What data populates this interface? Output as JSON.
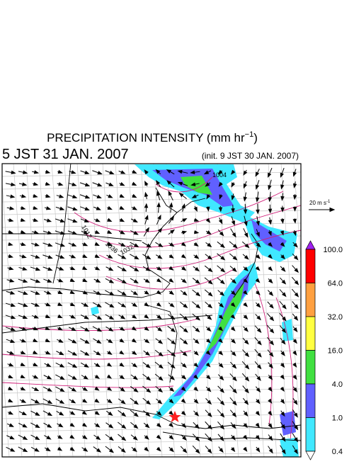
{
  "header": {
    "title": "PRECIPITATION INTENSITY (mm hr",
    "title_sup": "−1",
    "title_end": ")",
    "valid_time": "5 JST 31 JAN. 2007",
    "init_time": "(init. 9 JST 30 JAN. 2007)"
  },
  "wind_scale": {
    "label": "20 m s",
    "label_sup": "-1"
  },
  "isobar_labels": [
    "1012",
    "1036",
    "1032",
    "1004"
  ],
  "colorbar": {
    "labels": [
      "100.0",
      "64.0",
      "32.0",
      "16.0",
      "4.0",
      "1.0",
      "0.4"
    ],
    "colors": [
      "#a020f0",
      "#ff0000",
      "#ffa040",
      "#ffff40",
      "#40e040",
      "#6060ff",
      "#40e8ff",
      "#ffffff"
    ]
  }
}
